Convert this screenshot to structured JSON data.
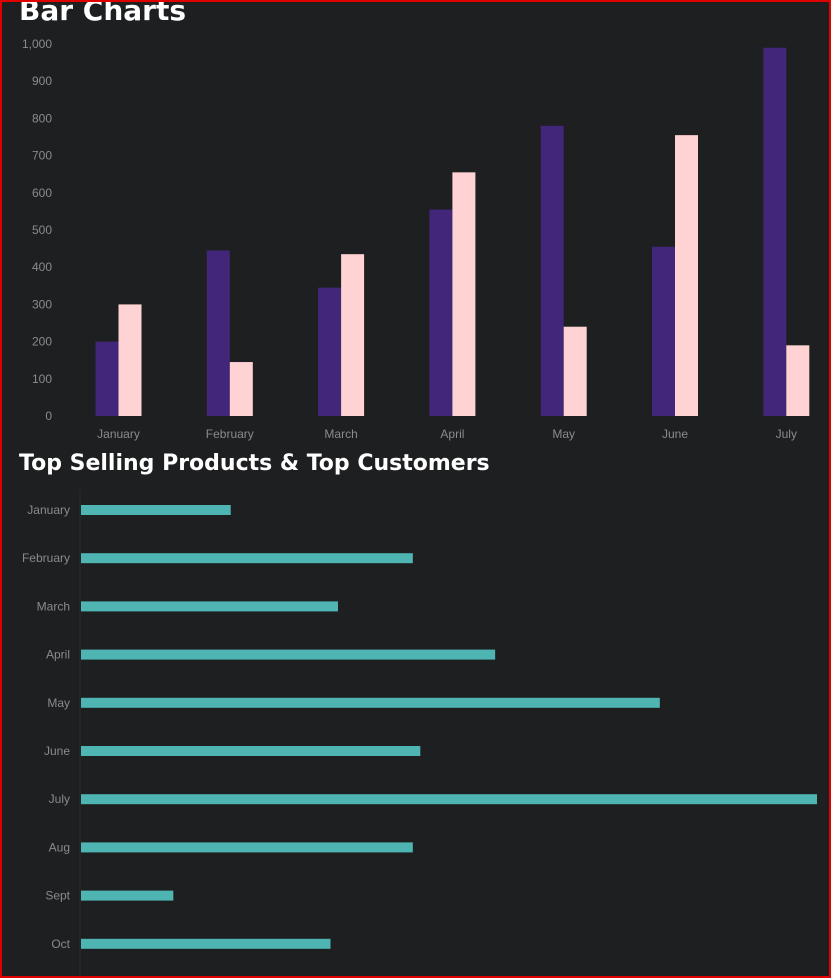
{
  "sections": {
    "bar_chart_title": "Bar Charts",
    "hbar_chart_title": "Top Selling Products & Top Customers"
  },
  "colors": {
    "background": "#1e1f21",
    "series_a": "#42267a",
    "series_b": "#ffd3d3",
    "hbar": "#4fb5b3",
    "axis_text": "#8b8b8b",
    "frame_border": "#e00000"
  },
  "chart_data": [
    {
      "type": "bar",
      "title": "Bar Charts",
      "categories": [
        "January",
        "February",
        "March",
        "April",
        "May",
        "June",
        "July"
      ],
      "series": [
        {
          "values": [
            200,
            445,
            345,
            555,
            780,
            455,
            990
          ]
        },
        {
          "values": [
            300,
            145,
            435,
            655,
            240,
            755,
            190
          ]
        }
      ],
      "yticks": [
        "0",
        "100",
        "200",
        "300",
        "400",
        "500",
        "600",
        "700",
        "800",
        "900",
        "1,000"
      ],
      "ylim": [
        0,
        1000
      ],
      "grid": false,
      "legend": "none"
    },
    {
      "type": "bar",
      "orientation": "horizontal",
      "title": "Top Selling Products & Top Customers",
      "categories": [
        "January",
        "February",
        "March",
        "April",
        "May",
        "June",
        "July",
        "Aug",
        "Sept",
        "Oct"
      ],
      "values": [
        300,
        665,
        515,
        830,
        1160,
        680,
        1475,
        665,
        185,
        500
      ],
      "xlim": [
        0,
        1475
      ],
      "grid": false,
      "legend": "none"
    }
  ]
}
